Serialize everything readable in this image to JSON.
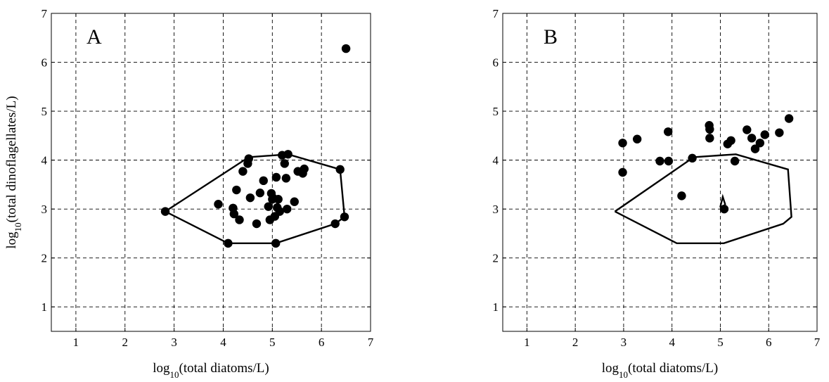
{
  "chart_data": [
    {
      "type": "scatter",
      "panel_label": "A",
      "xlabel": "log10(total diatoms/L)",
      "ylabel": "log10(total dinoflagellates/L)",
      "xlim": [
        0.5,
        7
      ],
      "ylim": [
        0.5,
        7
      ],
      "xticks": [
        1,
        2,
        3,
        4,
        5,
        6,
        7
      ],
      "yticks": [
        1,
        2,
        3,
        4,
        5,
        6,
        7
      ],
      "grid": true,
      "points": [
        [
          2.82,
          2.95
        ],
        [
          3.9,
          3.1
        ],
        [
          4.1,
          2.3
        ],
        [
          4.2,
          3.02
        ],
        [
          4.22,
          2.9
        ],
        [
          4.27,
          3.39
        ],
        [
          4.33,
          2.78
        ],
        [
          4.4,
          3.77
        ],
        [
          4.5,
          3.93
        ],
        [
          4.52,
          4.03
        ],
        [
          4.55,
          3.23
        ],
        [
          4.68,
          2.7
        ],
        [
          4.75,
          3.33
        ],
        [
          4.82,
          3.58
        ],
        [
          4.92,
          3.05
        ],
        [
          4.95,
          2.78
        ],
        [
          4.98,
          3.32
        ],
        [
          5.0,
          3.2
        ],
        [
          5.02,
          3.22
        ],
        [
          5.05,
          2.85
        ],
        [
          5.08,
          3.65
        ],
        [
          5.1,
          3.03
        ],
        [
          5.12,
          3.2
        ],
        [
          5.15,
          2.95
        ],
        [
          5.2,
          4.1
        ],
        [
          5.25,
          3.93
        ],
        [
          5.28,
          3.63
        ],
        [
          5.3,
          3.0
        ],
        [
          5.32,
          4.12
        ],
        [
          5.45,
          3.15
        ],
        [
          5.52,
          3.77
        ],
        [
          5.62,
          3.73
        ],
        [
          5.65,
          3.82
        ],
        [
          6.28,
          2.7
        ],
        [
          6.38,
          3.81
        ],
        [
          6.47,
          2.84
        ],
        [
          5.07,
          2.3
        ],
        [
          6.5,
          6.28
        ]
      ],
      "hull": [
        [
          2.82,
          2.95
        ],
        [
          4.52,
          4.06
        ],
        [
          5.32,
          4.12
        ],
        [
          6.38,
          3.81
        ],
        [
          6.47,
          2.84
        ],
        [
          6.28,
          2.7
        ],
        [
          5.07,
          2.3
        ],
        [
          4.1,
          2.3
        ],
        [
          2.82,
          2.95
        ]
      ]
    },
    {
      "type": "scatter",
      "panel_label": "B",
      "xlabel": "log10(total diatoms/L)",
      "ylabel": "",
      "xlim": [
        0.5,
        7
      ],
      "ylim": [
        0.5,
        7
      ],
      "xticks": [
        1,
        2,
        3,
        4,
        5,
        6,
        7
      ],
      "yticks": [
        1,
        2,
        3,
        4,
        5,
        6,
        7
      ],
      "grid": true,
      "points": [
        [
          2.98,
          4.35
        ],
        [
          2.98,
          3.75
        ],
        [
          3.28,
          4.43
        ],
        [
          3.75,
          3.98
        ],
        [
          3.92,
          4.58
        ],
        [
          3.93,
          3.98
        ],
        [
          4.2,
          3.27
        ],
        [
          4.42,
          4.04
        ],
        [
          4.77,
          4.71
        ],
        [
          4.78,
          4.63
        ],
        [
          4.78,
          4.45
        ],
        [
          5.08,
          3.0
        ],
        [
          5.15,
          4.33
        ],
        [
          5.22,
          4.4
        ],
        [
          5.3,
          3.98
        ],
        [
          5.55,
          4.62
        ],
        [
          5.65,
          4.45
        ],
        [
          5.72,
          4.23
        ],
        [
          5.82,
          4.35
        ],
        [
          5.92,
          4.52
        ],
        [
          6.22,
          4.56
        ],
        [
          6.42,
          4.85
        ]
      ],
      "hull": [
        [
          2.82,
          2.95
        ],
        [
          4.45,
          4.06
        ],
        [
          5.32,
          4.12
        ],
        [
          6.4,
          3.81
        ],
        [
          6.47,
          2.84
        ],
        [
          6.3,
          2.7
        ],
        [
          5.07,
          2.3
        ],
        [
          4.1,
          2.3
        ],
        [
          2.82,
          2.95
        ]
      ],
      "inner_shape": [
        [
          5.0,
          3.05
        ],
        [
          5.05,
          3.25
        ],
        [
          5.1,
          3.1
        ],
        [
          5.03,
          2.98
        ]
      ]
    }
  ]
}
